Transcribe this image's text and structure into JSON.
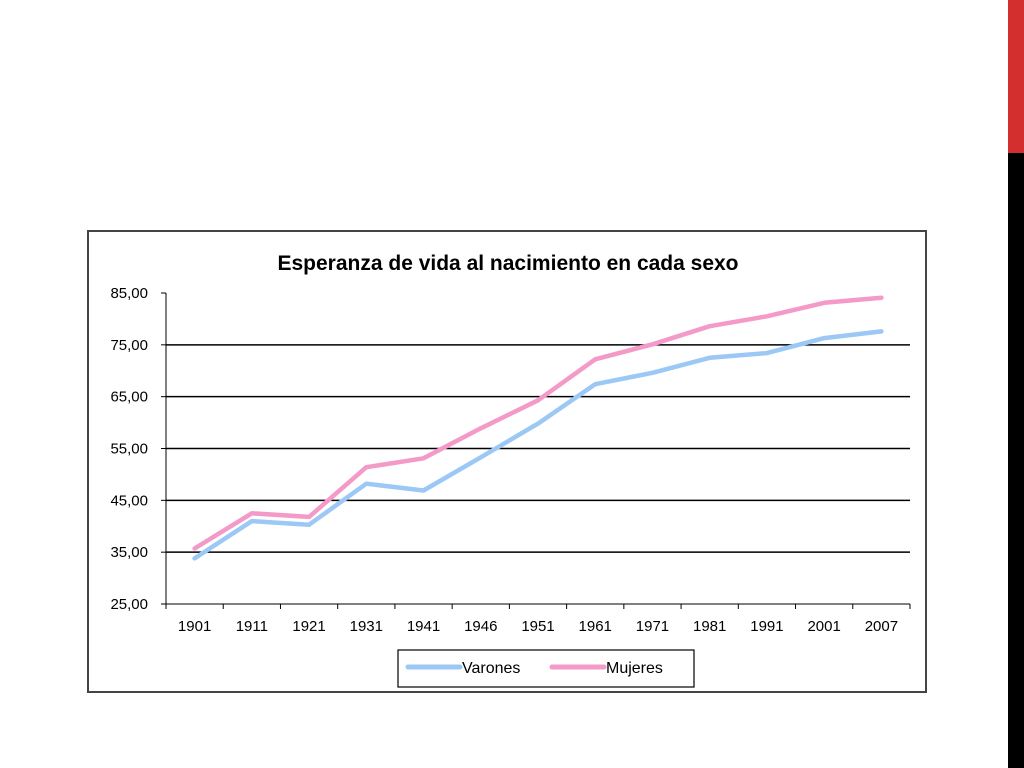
{
  "theme": {
    "accent": "#d32f2f",
    "background": "#ffffff",
    "bar": "#000000"
  },
  "chart_data": {
    "type": "line",
    "title": "Esperanza de vida al nacimiento en cada sexo",
    "xlabel": "",
    "ylabel": "",
    "categories": [
      "1901",
      "1911",
      "1921",
      "1931",
      "1941",
      "1946",
      "1951",
      "1961",
      "1971",
      "1981",
      "1991",
      "2001",
      "2007"
    ],
    "yticks": [
      "25,00",
      "35,00",
      "45,00",
      "55,00",
      "65,00",
      "75,00",
      "85,00"
    ],
    "ylim": [
      25,
      85
    ],
    "grid": "horizontal",
    "legend": "bottom",
    "series": [
      {
        "name": "Varones",
        "color": "#9cc8f5",
        "values": [
          33.8,
          41.0,
          40.3,
          48.2,
          46.9,
          53.3,
          59.8,
          67.4,
          69.6,
          72.5,
          73.4,
          76.3,
          77.6
        ]
      },
      {
        "name": "Mujeres",
        "color": "#f49ac8",
        "values": [
          35.7,
          42.5,
          41.8,
          51.4,
          53.1,
          58.9,
          64.3,
          72.2,
          75.1,
          78.6,
          80.5,
          83.1,
          84.1
        ]
      }
    ]
  }
}
